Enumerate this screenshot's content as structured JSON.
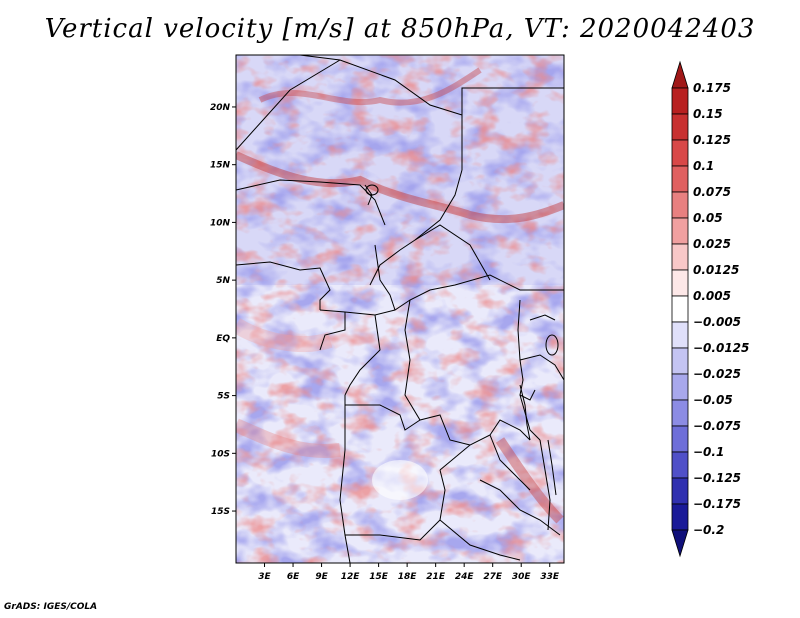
{
  "title": "Vertical velocity [m/s] at 850hPa, VT: 2020042403",
  "footer": "GrADS: IGES/COLA",
  "chart_data": {
    "type": "heatmap",
    "title": "Vertical velocity [m/s] at 850hPa, VT: 2020042403",
    "variable": "Vertical velocity",
    "units": "m/s",
    "level": "850hPa",
    "valid_time": "2020042403",
    "lon_range": [
      0,
      34.5
    ],
    "lat_range": [
      -19.5,
      24.5
    ],
    "x_ticks": [
      {
        "value": 3,
        "label": "3E"
      },
      {
        "value": 6,
        "label": "6E"
      },
      {
        "value": 9,
        "label": "9E"
      },
      {
        "value": 12,
        "label": "12E"
      },
      {
        "value": 15,
        "label": "15E"
      },
      {
        "value": 18,
        "label": "18E"
      },
      {
        "value": 21,
        "label": "21E"
      },
      {
        "value": 24,
        "label": "24E"
      },
      {
        "value": 27,
        "label": "27E"
      },
      {
        "value": 30,
        "label": "30E"
      },
      {
        "value": 33,
        "label": "33E"
      }
    ],
    "y_ticks": [
      {
        "value": 20,
        "label": "20N"
      },
      {
        "value": 15,
        "label": "15N"
      },
      {
        "value": 10,
        "label": "10N"
      },
      {
        "value": 5,
        "label": "5N"
      },
      {
        "value": 0,
        "label": "EQ"
      },
      {
        "value": -5,
        "label": "5S"
      },
      {
        "value": -10,
        "label": "10S"
      },
      {
        "value": -15,
        "label": "15S"
      }
    ],
    "colorbar": {
      "labels": [
        "0.175",
        "0.15",
        "0.125",
        "0.1",
        "0.075",
        "0.05",
        "0.025",
        "0.0125",
        "0.005",
        "−0.005",
        "−0.0125",
        "−0.025",
        "−0.05",
        "−0.075",
        "−0.1",
        "−0.125",
        "−0.175",
        "−0.2"
      ],
      "colors": [
        "#a01818",
        "#b82020",
        "#c83030",
        "#d84848",
        "#e06060",
        "#e88080",
        "#f0a0a0",
        "#f8c8c8",
        "#fde8e8",
        "#ffffff",
        "#e0e0fa",
        "#c4c4f2",
        "#a8a8ec",
        "#8c8ce4",
        "#6e6ed8",
        "#5050c8",
        "#3030b0",
        "#1a1a98",
        "#10107a"
      ]
    }
  }
}
